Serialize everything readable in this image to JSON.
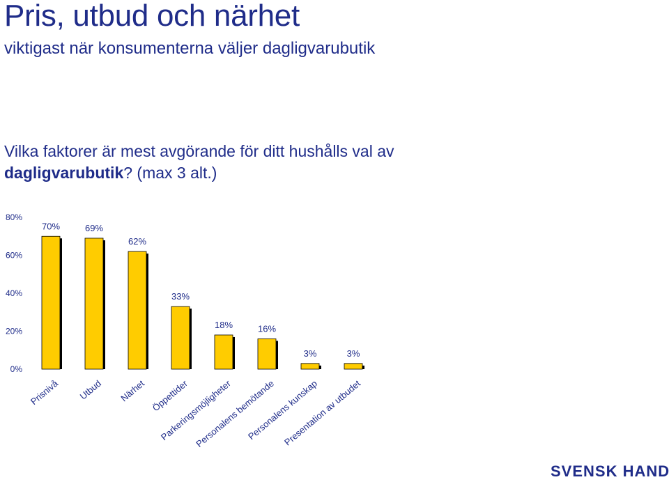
{
  "slide": {
    "title": "Pris, utbud och närhet",
    "subtitle": "viktigast när konsumenterna väljer dagligvarubutik",
    "question_prefix": "Vilka faktorer är mest avgörande för ditt hushålls val av ",
    "question_bold": "dagligvarubutik",
    "question_suffix": "? (max 3 alt.)",
    "brand": "SVENSK HANDEL"
  },
  "colors": {
    "text": "#1f2c89",
    "bar": "#ffcc00",
    "bar_outline": "#000000",
    "bar_shadow": "#000000"
  },
  "chart_data": {
    "type": "bar",
    "categories": [
      "Prisnivå",
      "Utbud",
      "Närhet",
      "Öppettider",
      "Parkeringsmöjligheter",
      "Personalens bemötande",
      "Personalens kunskap",
      "Presentation av utbudet"
    ],
    "values": [
      70,
      69,
      62,
      33,
      18,
      16,
      3,
      3
    ],
    "data_labels": [
      "70%",
      "69%",
      "62%",
      "33%",
      "18%",
      "16%",
      "3%",
      "3%"
    ],
    "ylim": [
      0,
      80
    ],
    "yticks": [
      0,
      20,
      40,
      60,
      80
    ],
    "ytick_labels": [
      "0%",
      "20%",
      "40%",
      "60%",
      "80%"
    ],
    "xlabel": "",
    "ylabel": "",
    "grid": false,
    "legend": false
  }
}
